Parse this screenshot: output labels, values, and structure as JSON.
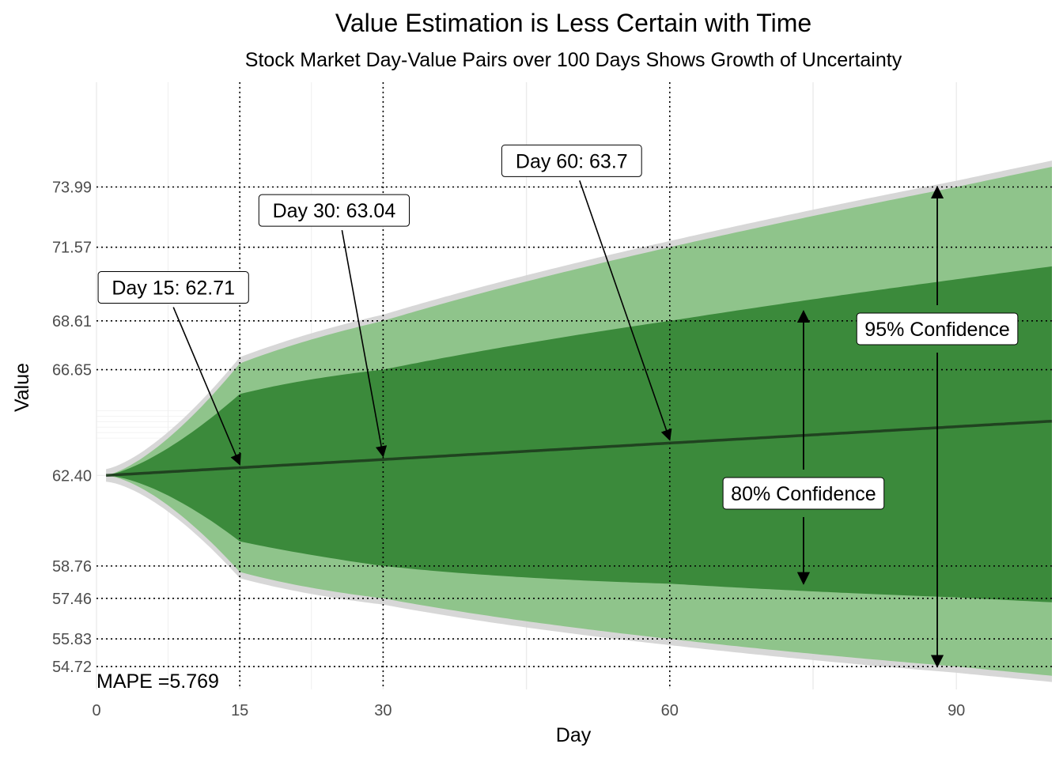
{
  "chart_data": {
    "type": "area",
    "title": "Value Estimation is Less Certain with Time",
    "subtitle": "Stock Market Day-Value Pairs over 100 Days Shows Growth of Uncertainty",
    "xlabel": "Day",
    "ylabel": "Value",
    "xlim": [
      0,
      100
    ],
    "ylim": [
      53.8,
      78.2
    ],
    "x_ticks": [
      0,
      15,
      30,
      60,
      90
    ],
    "y_ticks": [
      54.72,
      55.83,
      57.46,
      58.76,
      62.4,
      66.65,
      68.61,
      71.57,
      73.99
    ],
    "y_tick_labels": [
      "54.72",
      "55.83",
      "57.46",
      "58.76",
      "62.40",
      "66.65",
      "68.61",
      "71.57",
      "73.99"
    ],
    "grid": true,
    "reference_lines": {
      "vertical_days": [
        15,
        30,
        60
      ],
      "horizontal_values": [
        54.72,
        55.83,
        57.46,
        58.76,
        66.65,
        68.61,
        71.57,
        73.99
      ]
    },
    "forecast": {
      "x": [
        1,
        15,
        30,
        60,
        90,
        100
      ],
      "mean": [
        62.4,
        62.71,
        63.04,
        63.7,
        64.36,
        64.58
      ],
      "lower_80": [
        62.4,
        59.75,
        58.76,
        58.05,
        57.5,
        57.3
      ],
      "upper_80": [
        62.4,
        65.67,
        66.65,
        68.61,
        70.28,
        70.8
      ],
      "lower_95": [
        62.4,
        58.52,
        57.46,
        55.83,
        54.72,
        54.35
      ],
      "upper_95": [
        62.4,
        66.9,
        68.61,
        71.57,
        73.99,
        74.8
      ]
    },
    "annotations": [
      {
        "text": "Day 15: 62.71",
        "x": 15,
        "y": 62.71
      },
      {
        "text": "Day 30: 63.04",
        "x": 30,
        "y": 63.04
      },
      {
        "text": "Day 60: 63.7",
        "x": 60,
        "y": 63.7
      }
    ],
    "confidence_labels": {
      "c80": {
        "text": "80% Confidence",
        "x": 74,
        "from": 58.05,
        "to": 69.0
      },
      "c95": {
        "text": "95% Confidence",
        "x": 88,
        "from": 54.72,
        "to": 73.99
      }
    },
    "mape_text": "MAPE =5.769",
    "colors": {
      "band_80": "#3b8a3b",
      "band_95": "#8fc48b",
      "outline": "#d3d3d3",
      "mean_line": "#1e3b1e",
      "ref_line": "#000000"
    }
  }
}
